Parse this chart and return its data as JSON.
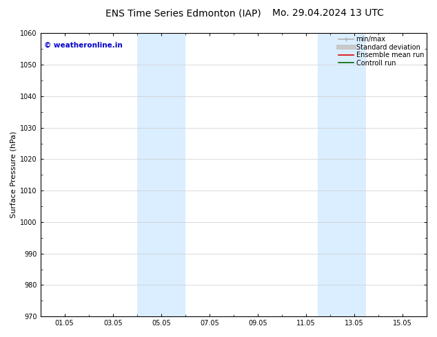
{
  "title": "ENS Time Series Edmonton (IAP)",
  "title2": "Mo. 29.04.2024 13 UTC",
  "ylabel": "Surface Pressure (hPa)",
  "ylim": [
    970,
    1060
  ],
  "yticks": [
    970,
    980,
    990,
    1000,
    1010,
    1020,
    1030,
    1040,
    1050,
    1060
  ],
  "xtick_labels": [
    "01.05",
    "03.05",
    "05.05",
    "07.05",
    "09.05",
    "11.05",
    "13.05",
    "15.05"
  ],
  "xtick_positions": [
    1.0,
    3.0,
    5.0,
    7.0,
    9.0,
    11.0,
    13.0,
    15.0
  ],
  "xmin": 0.0,
  "xmax": 16.0,
  "shaded_bands": [
    {
      "xmin": 4.0,
      "xmax": 5.0,
      "color": "#daeeff"
    },
    {
      "xmin": 5.0,
      "xmax": 6.0,
      "color": "#daeeff"
    },
    {
      "xmin": 11.5,
      "xmax": 12.5,
      "color": "#daeeff"
    },
    {
      "xmin": 12.5,
      "xmax": 13.5,
      "color": "#daeeff"
    }
  ],
  "watermark_text": "© weatheronline.in",
  "watermark_color": "#0000cc",
  "legend_items": [
    {
      "label": "min/max",
      "color": "#b0b0b0",
      "lw": 1.2
    },
    {
      "label": "Standard deviation",
      "color": "#c8c8c8",
      "lw": 5
    },
    {
      "label": "Ensemble mean run",
      "color": "#dd0000",
      "lw": 1.2
    },
    {
      "label": "Controll run",
      "color": "#006600",
      "lw": 1.2
    }
  ],
  "bg_color": "#ffffff",
  "grid_color": "#cccccc",
  "title_fontsize": 10,
  "ylabel_fontsize": 8,
  "watermark_fontsize": 7.5,
  "legend_fontsize": 7
}
